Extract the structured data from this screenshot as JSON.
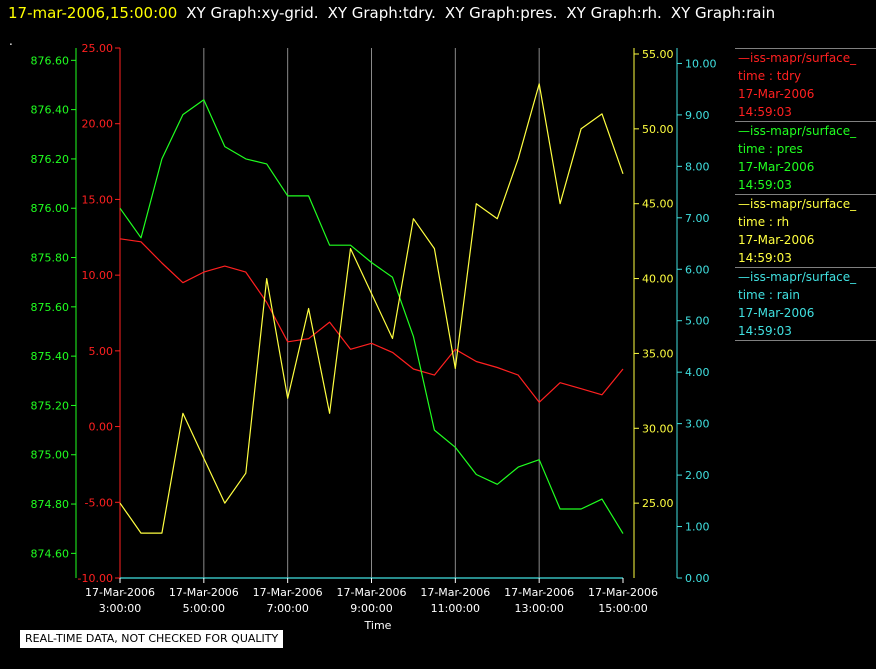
{
  "header": {
    "timestamp": "17-mar-2006,15:00:00",
    "graphs": [
      "XY Graph:xy-grid.",
      "XY Graph:tdry.",
      "XY Graph:pres.",
      "XY Graph:rh.",
      "XY Graph:rain"
    ]
  },
  "dot": ".",
  "note": "REAL-TIME DATA, NOT CHECKED FOR QUALITY",
  "legend": [
    {
      "source": "—iss-mapr/surface_",
      "param": "time : tdry",
      "date": "17-Mar-2006",
      "time": "14:59:03",
      "color": "#ff2020"
    },
    {
      "source": "—iss-mapr/surface_",
      "param": "time : pres",
      "date": "17-Mar-2006",
      "time": "14:59:03",
      "color": "#20ff20"
    },
    {
      "source": "—iss-mapr/surface_",
      "param": "time : rh",
      "date": "17-Mar-2006",
      "time": "14:59:03",
      "color": "#ffff40"
    },
    {
      "source": "—iss-mapr/surface_",
      "param": "time : rain",
      "date": "17-Mar-2006",
      "time": "14:59:03",
      "color": "#40e0e0"
    }
  ],
  "chart_data": {
    "type": "line",
    "xlabel": "Time",
    "x_ticks": [
      {
        "date": "17-Mar-2006",
        "time": "3:00:00"
      },
      {
        "date": "17-Mar-2006",
        "time": "5:00:00"
      },
      {
        "date": "17-Mar-2006",
        "time": "7:00:00"
      },
      {
        "date": "17-Mar-2006",
        "time": "9:00:00"
      },
      {
        "date": "17-Mar-2006",
        "time": "11:00:00"
      },
      {
        "date": "17-Mar-2006",
        "time": "13:00:00"
      },
      {
        "date": "17-Mar-2006",
        "time": "15:00:00"
      }
    ],
    "xlim": [
      "3:00",
      "15:00"
    ],
    "grid": "vertical",
    "axes": [
      {
        "key": "pres",
        "color": "#20ff20",
        "ylim": [
          874.5,
          876.65
        ],
        "ticks": [
          "874.60",
          "874.80",
          "875.00",
          "875.20",
          "875.40",
          "875.60",
          "875.80",
          "876.00",
          "876.20",
          "876.40",
          "876.60"
        ]
      },
      {
        "key": "tdry",
        "color": "#ff2020",
        "ylim": [
          -10,
          25
        ],
        "ticks": [
          "-10.00",
          "-5.00",
          "0.00",
          "5.00",
          "10.00",
          "15.00",
          "20.00",
          "25.00"
        ]
      },
      {
        "key": "rh",
        "color": "#ffff40",
        "ylim": [
          20,
          55.4
        ],
        "ticks": [
          "25.00",
          "30.00",
          "35.00",
          "40.00",
          "45.00",
          "50.00",
          "55.00"
        ]
      },
      {
        "key": "rain",
        "color": "#40e0e0",
        "ylim": [
          0,
          10.3
        ],
        "ticks": [
          "0.00",
          "1.00",
          "2.00",
          "3.00",
          "4.00",
          "5.00",
          "6.00",
          "7.00",
          "8.00",
          "9.00",
          "10.00"
        ]
      }
    ],
    "series": [
      {
        "key": "tdry",
        "color": "#ff2020",
        "x": [
          "3:00",
          "3:30",
          "4:00",
          "4:30",
          "5:00",
          "5:30",
          "6:00",
          "6:30",
          "7:00",
          "7:30",
          "8:00",
          "8:30",
          "9:00",
          "9:30",
          "10:00",
          "10:30",
          "11:00",
          "11:30",
          "12:00",
          "12:30",
          "13:00",
          "13:30",
          "14:00",
          "14:30",
          "15:00"
        ],
        "values": [
          12.4,
          12.2,
          10.8,
          9.5,
          10.2,
          10.6,
          10.2,
          8.2,
          5.6,
          5.8,
          6.9,
          5.1,
          5.5,
          4.9,
          3.8,
          3.4,
          5.1,
          4.3,
          3.9,
          3.4,
          1.6,
          2.9,
          2.5,
          2.1,
          3.8
        ]
      },
      {
        "key": "pres",
        "color": "#20ff20",
        "x": [
          "3:00",
          "3:30",
          "4:00",
          "4:30",
          "5:00",
          "5:30",
          "6:00",
          "6:30",
          "7:00",
          "7:30",
          "8:00",
          "8:30",
          "9:00",
          "9:30",
          "10:00",
          "10:30",
          "11:00",
          "11:30",
          "12:00",
          "12:30",
          "13:00",
          "13:30",
          "14:00",
          "14:30",
          "15:00"
        ],
        "values": [
          876.0,
          875.88,
          876.2,
          876.38,
          876.44,
          876.25,
          876.2,
          876.18,
          876.05,
          876.05,
          875.85,
          875.85,
          875.78,
          875.72,
          875.48,
          875.1,
          875.03,
          874.92,
          874.88,
          874.95,
          874.98,
          874.78,
          874.78,
          874.82,
          874.68
        ]
      },
      {
        "key": "rh",
        "color": "#ffff40",
        "x": [
          "3:00",
          "3:30",
          "4:00",
          "4:30",
          "5:00",
          "5:30",
          "6:00",
          "6:30",
          "7:00",
          "7:30",
          "8:00",
          "8:30",
          "9:00",
          "9:30",
          "10:00",
          "10:30",
          "11:00",
          "11:30",
          "12:00",
          "12:30",
          "13:00",
          "13:30",
          "14:00",
          "14:30",
          "15:00"
        ],
        "values": [
          25,
          23,
          23,
          31,
          28,
          25,
          27,
          40,
          32,
          38,
          31,
          42,
          39,
          36,
          44,
          42,
          34,
          45,
          44,
          48,
          53,
          45,
          50,
          51,
          47
        ]
      },
      {
        "key": "rain",
        "color": "#40e0e0",
        "x": [
          "3:00",
          "15:00"
        ],
        "values": [
          0,
          0
        ]
      }
    ]
  }
}
